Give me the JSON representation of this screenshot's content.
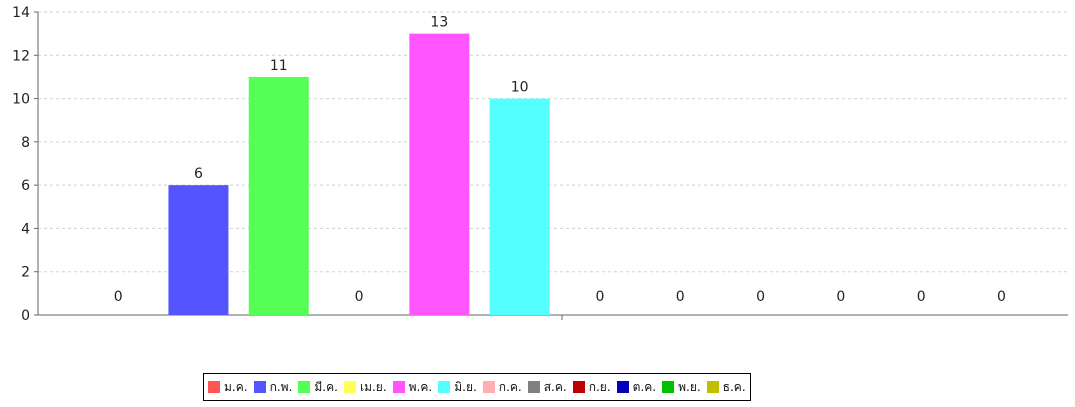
{
  "chart_data": {
    "type": "bar",
    "categories": [
      "ม.ค.",
      "ก.พ.",
      "มี.ค.",
      "เม.ย.",
      "พ.ค.",
      "มิ.ย.",
      "ก.ค.",
      "ส.ค.",
      "ก.ย.",
      "ต.ค.",
      "พ.ย.",
      "ธ.ค."
    ],
    "values": [
      0,
      6,
      11,
      0,
      13,
      10,
      0,
      0,
      0,
      0,
      0,
      0
    ],
    "data_labels": [
      "0",
      "6",
      "11",
      "0",
      "13",
      "10",
      "0",
      "0",
      "0",
      "0",
      "0",
      "0"
    ],
    "colors": [
      "#ff5555",
      "#5555ff",
      "#55ff55",
      "#ffff55",
      "#ff55ff",
      "#55ffff",
      "#ffafaf",
      "#808080",
      "#c00000",
      "#0000c0",
      "#00c000",
      "#c0c000"
    ],
    "ylim": [
      0,
      14
    ],
    "yticks": [
      0,
      2,
      4,
      6,
      8,
      10,
      12,
      14
    ],
    "ytick_labels": [
      "0",
      "2",
      "4",
      "6",
      "8",
      "10",
      "12",
      "14"
    ],
    "grid": true,
    "legend_position": "bottom-center",
    "title": "",
    "xlabel": "",
    "ylabel": ""
  }
}
